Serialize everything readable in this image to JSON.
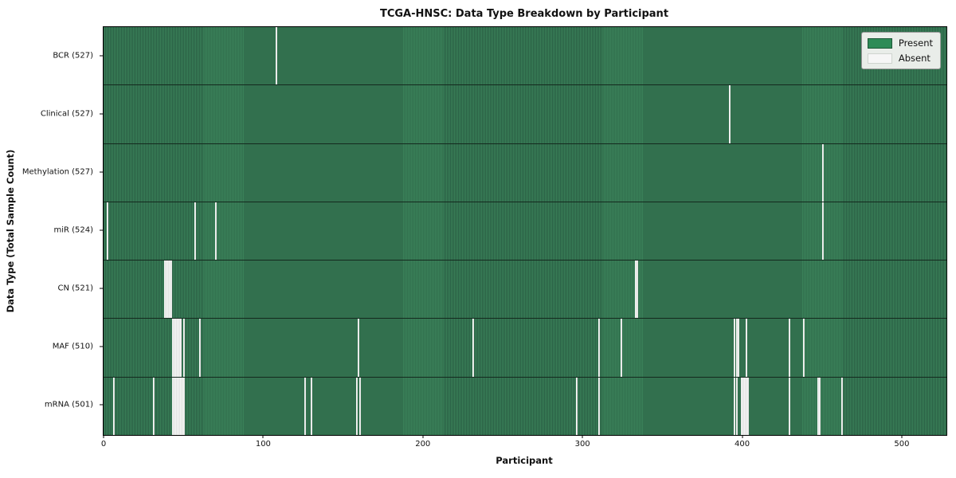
{
  "title": "TCGA-HNSC: Data Type Breakdown by Participant",
  "colors": {
    "present": "#2e8b57",
    "present_stripe_light": "#3a8159",
    "present_stripe_dark": "#2a5f44",
    "absent": "#f6f6f6",
    "legend_bg": "#e9ede9",
    "legend_border": "#9a9a9a"
  },
  "chart_data": {
    "type": "heatmap",
    "title": "TCGA-HNSC: Data Type Breakdown by Participant",
    "xlabel": "Participant",
    "ylabel": "Data Type (Total Sample Count)",
    "legend_labels": [
      "Present",
      "Absent"
    ],
    "legend_position": "upper right",
    "n_participants": 528,
    "x_ticks": [
      0,
      100,
      200,
      300,
      400,
      500
    ],
    "cell_states": [
      "present",
      "absent"
    ],
    "rows": [
      {
        "name": "BCR",
        "count": 527,
        "label": "BCR (527)",
        "absent_participants": [
          108
        ]
      },
      {
        "name": "Clinical",
        "count": 527,
        "label": "Clinical (527)",
        "absent_participants": [
          392
        ]
      },
      {
        "name": "Methylation",
        "count": 527,
        "label": "Methylation (527)",
        "absent_participants": [
          450
        ]
      },
      {
        "name": "miR",
        "count": 524,
        "label": "miR (524)",
        "absent_participants": [
          2,
          57,
          70,
          450
        ]
      },
      {
        "name": "CN",
        "count": 521,
        "label": "CN (521)",
        "absent_participants": [
          38,
          39,
          40,
          41,
          42,
          333,
          334
        ]
      },
      {
        "name": "MAF",
        "count": 510,
        "label": "MAF (510)",
        "absent_participants": [
          43,
          44,
          45,
          46,
          47,
          48,
          50,
          60,
          159,
          231,
          310,
          324,
          395,
          396,
          397,
          402,
          429,
          438
        ]
      },
      {
        "name": "mRNA",
        "count": 501,
        "label": "mRNA (501)",
        "absent_participants": [
          6,
          31,
          43,
          44,
          45,
          46,
          47,
          48,
          49,
          50,
          126,
          130,
          158,
          160,
          296,
          310,
          395,
          396,
          399,
          400,
          401,
          402,
          403,
          429,
          447,
          448,
          462
        ]
      }
    ]
  }
}
